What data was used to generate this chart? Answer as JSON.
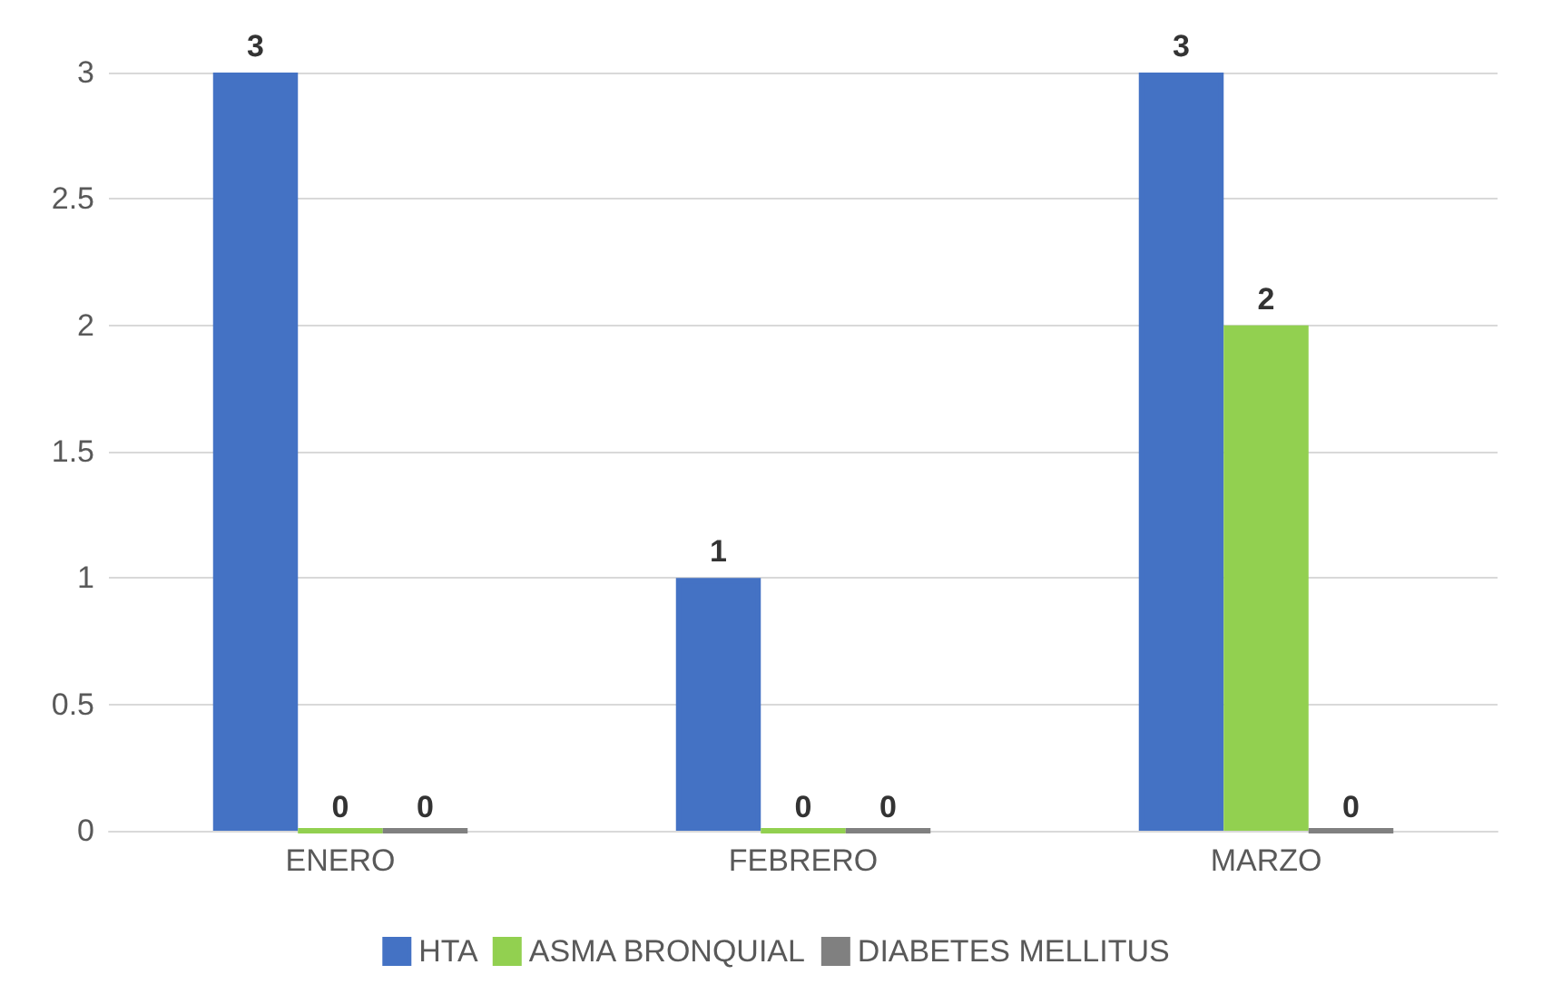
{
  "chart_data": {
    "type": "bar",
    "categories": [
      "ENERO",
      "FEBRERO",
      "MARZO"
    ],
    "series": [
      {
        "name": "HTA",
        "color": "#4472c4",
        "values": [
          3,
          1,
          3
        ]
      },
      {
        "name": "ASMA BRONQUIAL",
        "color": "#92d050",
        "values": [
          0,
          0,
          2
        ]
      },
      {
        "name": "DIABETES MELLITUS",
        "color": "#808080",
        "values": [
          0,
          0,
          0
        ]
      }
    ],
    "ylim": [
      0,
      3
    ],
    "yticks": [
      0,
      0.5,
      1,
      1.5,
      2,
      2.5,
      3
    ],
    "grid": "y",
    "legend": "bottom",
    "data_labels": true
  }
}
